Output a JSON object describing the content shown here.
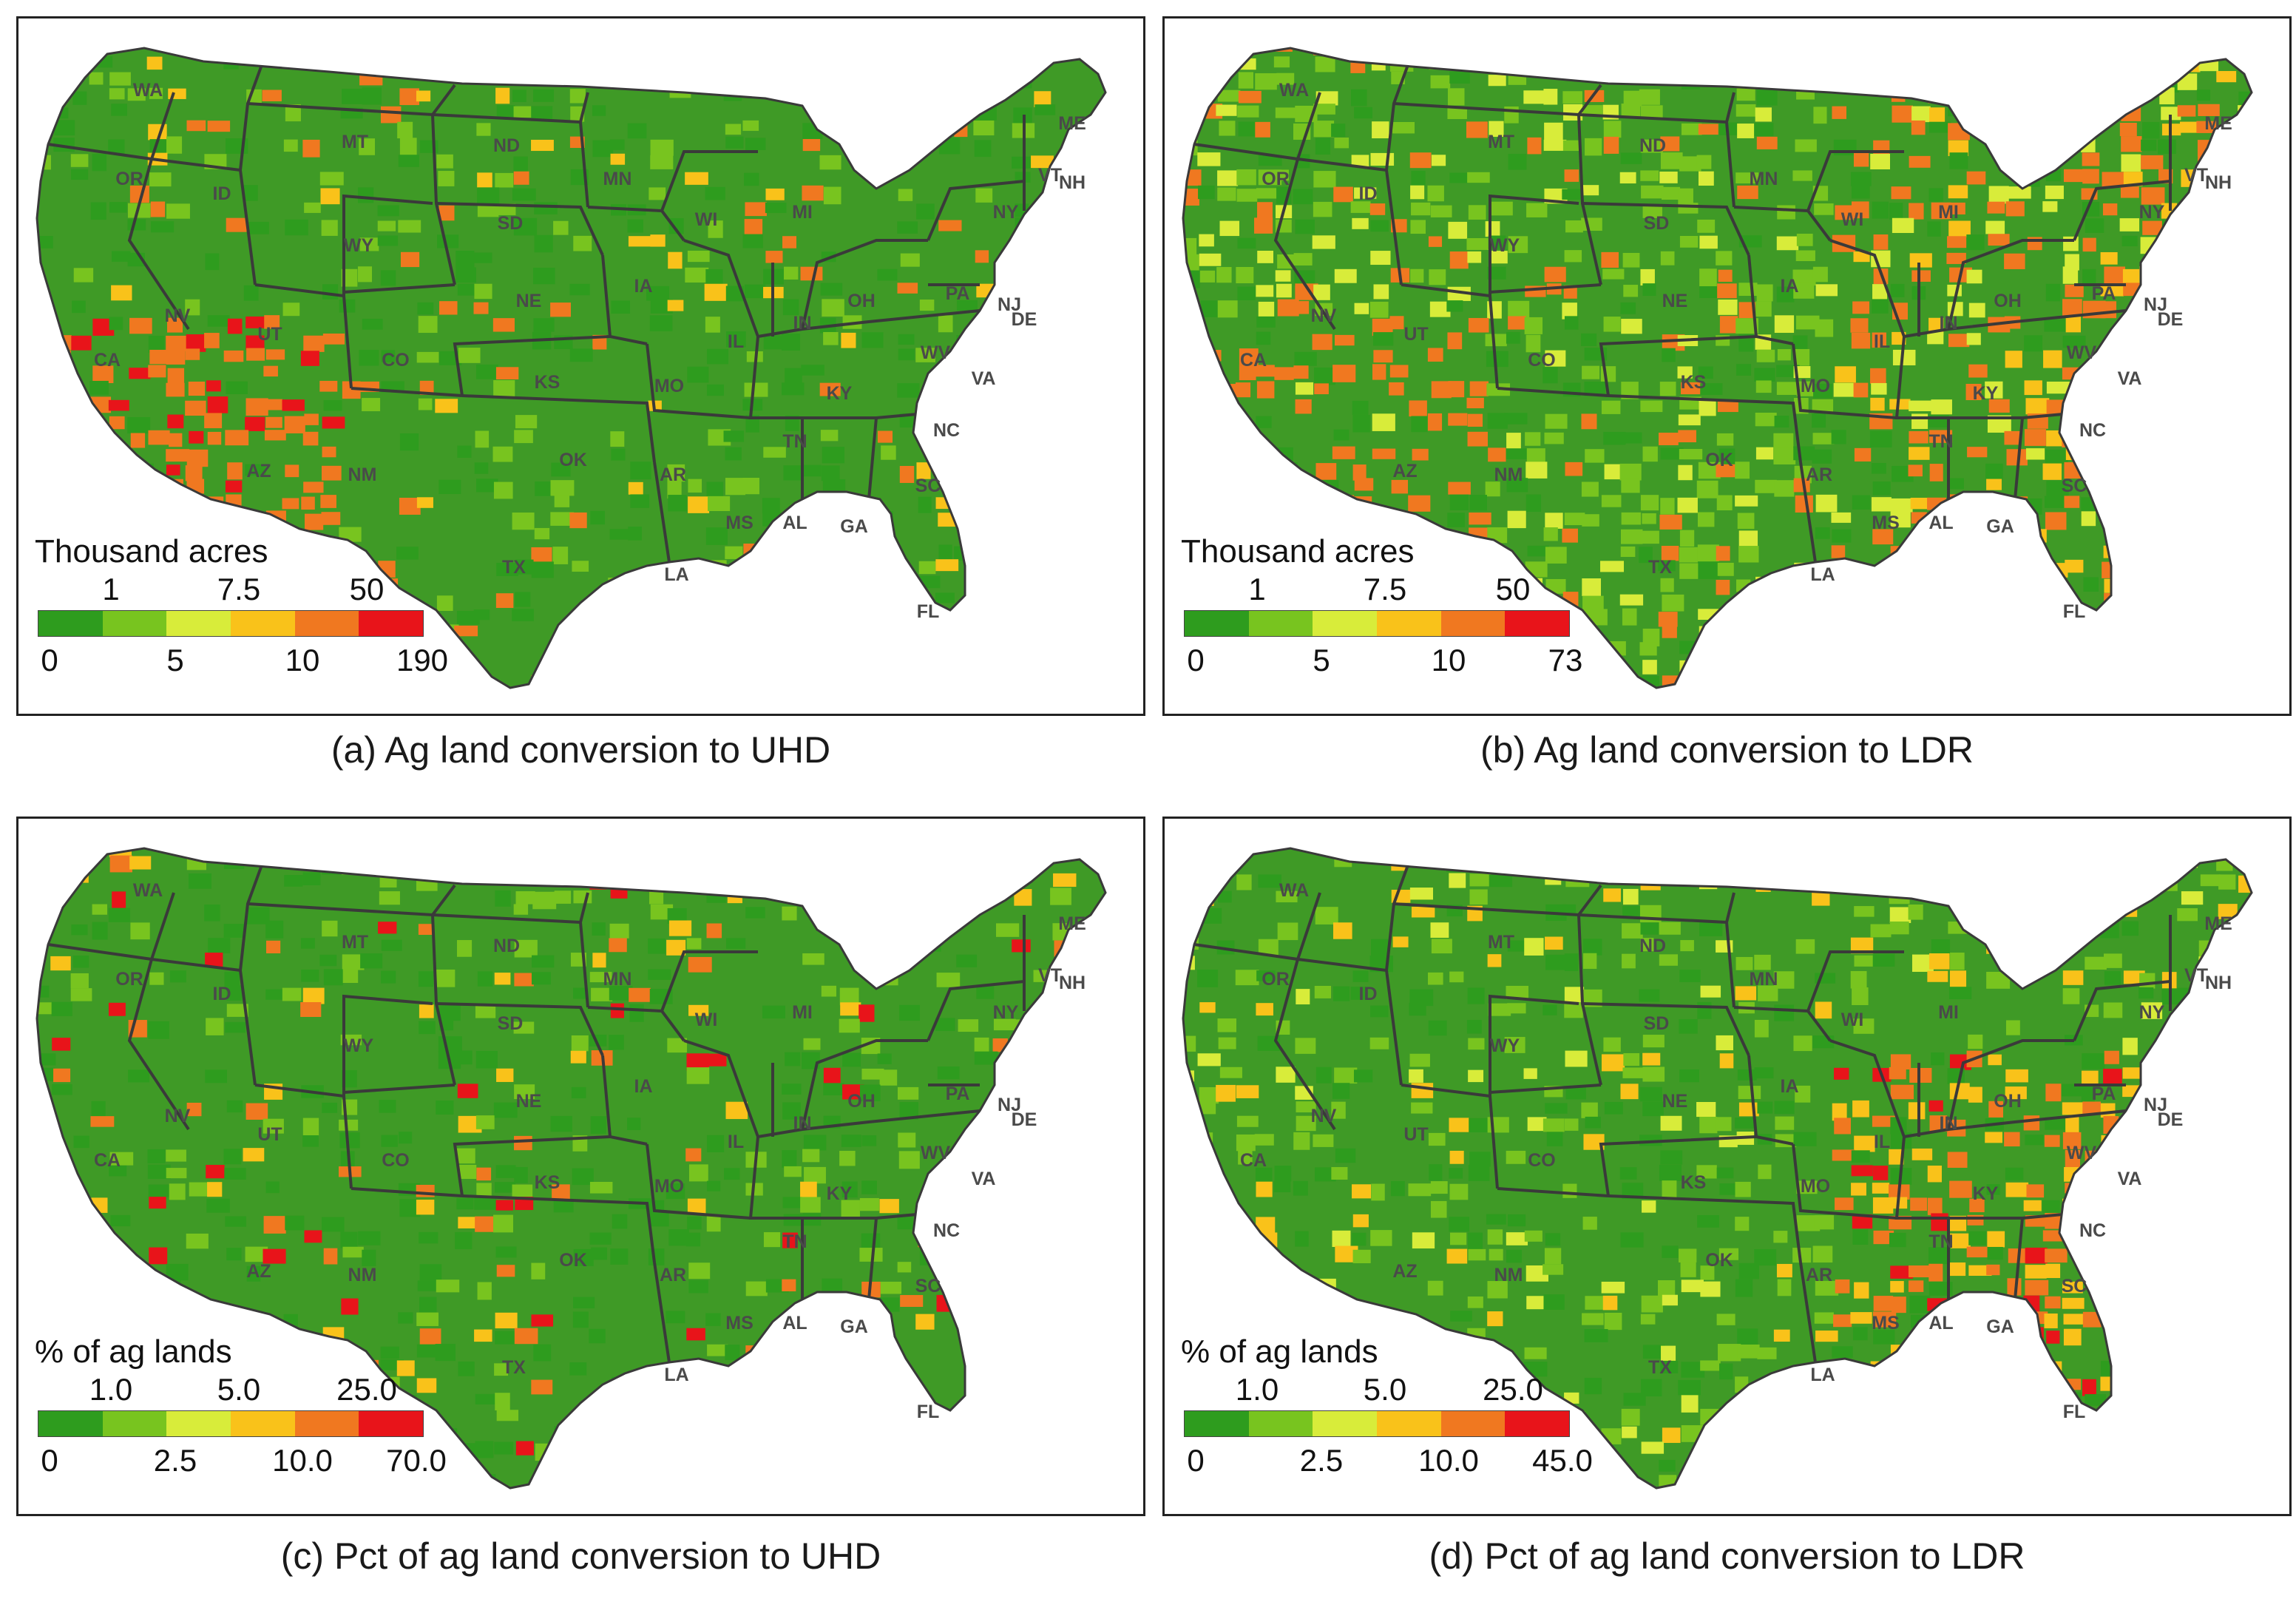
{
  "palette": {
    "class1": "#2e9c1e",
    "class2": "#78c41f",
    "class3": "#d8ec3a",
    "class4": "#f9c21a",
    "class5": "#f07820",
    "class6": "#e8141a",
    "border": "#3a3a3a",
    "land": "#3f9a26"
  },
  "state_labels": [
    "WA",
    "OR",
    "MT",
    "ID",
    "ND",
    "MN",
    "ME",
    "SD",
    "WY",
    "NV",
    "UT",
    "CA",
    "CO",
    "NE",
    "IA",
    "KS",
    "MO",
    "AZ",
    "NM",
    "OK",
    "AR",
    "TX",
    "LA",
    "MS",
    "AL",
    "GA",
    "SC",
    "NC",
    "TN",
    "KY",
    "VA",
    "WV",
    "OH",
    "IN",
    "IL",
    "MI",
    "WI",
    "PA",
    "NY",
    "VT",
    "NH",
    "NJ",
    "DE",
    "FL"
  ],
  "panels": [
    {
      "caption": "(a) Ag land conversion to UHD",
      "legend": {
        "title": "Thousand acres",
        "top_ticks": [
          "1",
          "7.5",
          "50"
        ],
        "bottom_ticks": [
          "0",
          "5",
          "10",
          "190"
        ]
      },
      "hotspot_level": "low-west"
    },
    {
      "caption": "(b) Ag land conversion to LDR",
      "legend": {
        "title": "Thousand acres",
        "top_ticks": [
          "1",
          "7.5",
          "50"
        ],
        "bottom_ticks": [
          "0",
          "5",
          "10",
          "73"
        ]
      },
      "hotspot_level": "east"
    },
    {
      "caption": "(c) Pct of ag land conversion to UHD",
      "legend": {
        "title": "% of ag lands",
        "top_ticks": [
          "1.0",
          "5.0",
          "25.0"
        ],
        "bottom_ticks": [
          "0",
          "2.5",
          "10.0",
          "70.0"
        ]
      },
      "hotspot_level": "sparse"
    },
    {
      "caption": "(d) Pct of ag land conversion to LDR",
      "legend": {
        "title": "% of ag lands",
        "top_ticks": [
          "1.0",
          "5.0",
          "25.0"
        ],
        "bottom_ticks": [
          "0",
          "2.5",
          "10.0",
          "45.0"
        ]
      },
      "hotspot_level": "east-dense"
    }
  ]
}
